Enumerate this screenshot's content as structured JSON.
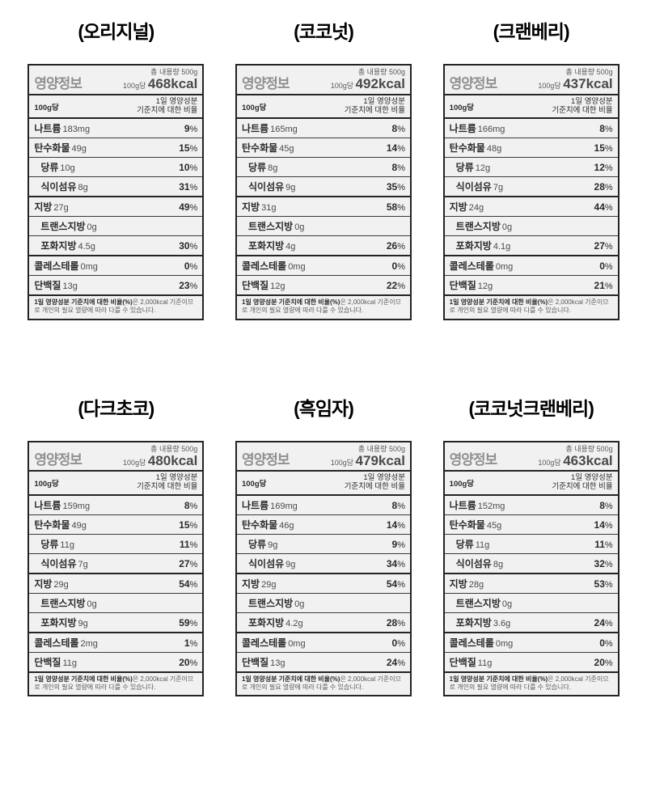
{
  "labels": {
    "nutrition_title": "영양정보",
    "total_net": "총 내용량 500g",
    "per100_prefix": "100g당",
    "per100g": "100g당",
    "daily_value_line1": "1일 영양성분",
    "daily_value_line2": "기준치에 대한 비율",
    "footnote_bold": "1일 영양성분 기준치에 대한 비율(%)",
    "footnote_rest": "은 2,000kcal 기준이므로 개인의 필요 열량에 따라 다를 수 있습니다."
  },
  "nutrients": {
    "sodium": "나트륨",
    "carbs": "탄수화물",
    "sugar": "당류",
    "fiber": "식이섬유",
    "fat": "지방",
    "trans": "트랜스지방",
    "sat": "포화지방",
    "chol": "콜레스테롤",
    "protein": "단백질"
  },
  "style": {
    "card_bg": "#f1f1f1",
    "border_color": "#242424",
    "title_gray": "#8f8f8f",
    "text_color": "#2a2a2a"
  },
  "variants": [
    {
      "title": "(오리지널)",
      "kcal": "468kcal",
      "rows": [
        {
          "k": "sodium",
          "amt": "183mg",
          "pct": "9",
          "thick": false,
          "indent": false
        },
        {
          "k": "carbs",
          "amt": "49g",
          "pct": "15",
          "thick": false,
          "indent": false
        },
        {
          "k": "sugar",
          "amt": "10g",
          "pct": "10",
          "thick": false,
          "indent": true
        },
        {
          "k": "fiber",
          "amt": "8g",
          "pct": "31",
          "thick": true,
          "indent": true
        },
        {
          "k": "fat",
          "amt": "27g",
          "pct": "49",
          "thick": false,
          "indent": false
        },
        {
          "k": "trans",
          "amt": "0g",
          "pct": "",
          "thick": false,
          "indent": true
        },
        {
          "k": "sat",
          "amt": "4.5g",
          "pct": "30",
          "thick": true,
          "indent": true
        },
        {
          "k": "chol",
          "amt": "0mg",
          "pct": "0",
          "thick": false,
          "indent": false
        },
        {
          "k": "protein",
          "amt": "13g",
          "pct": "23",
          "thick": true,
          "indent": false
        }
      ]
    },
    {
      "title": "(코코넛)",
      "kcal": "492kcal",
      "rows": [
        {
          "k": "sodium",
          "amt": "165mg",
          "pct": "8",
          "thick": false,
          "indent": false
        },
        {
          "k": "carbs",
          "amt": "45g",
          "pct": "14",
          "thick": false,
          "indent": false
        },
        {
          "k": "sugar",
          "amt": "8g",
          "pct": "8",
          "thick": false,
          "indent": true
        },
        {
          "k": "fiber",
          "amt": "9g",
          "pct": "35",
          "thick": true,
          "indent": true
        },
        {
          "k": "fat",
          "amt": "31g",
          "pct": "58",
          "thick": false,
          "indent": false
        },
        {
          "k": "trans",
          "amt": "0g",
          "pct": "",
          "thick": false,
          "indent": true
        },
        {
          "k": "sat",
          "amt": "4g",
          "pct": "26",
          "thick": true,
          "indent": true
        },
        {
          "k": "chol",
          "amt": "0mg",
          "pct": "0",
          "thick": false,
          "indent": false
        },
        {
          "k": "protein",
          "amt": "12g",
          "pct": "22",
          "thick": true,
          "indent": false
        }
      ]
    },
    {
      "title": "(크랜베리)",
      "kcal": "437kcal",
      "rows": [
        {
          "k": "sodium",
          "amt": "166mg",
          "pct": "8",
          "thick": false,
          "indent": false
        },
        {
          "k": "carbs",
          "amt": "48g",
          "pct": "15",
          "thick": false,
          "indent": false
        },
        {
          "k": "sugar",
          "amt": "12g",
          "pct": "12",
          "thick": false,
          "indent": true
        },
        {
          "k": "fiber",
          "amt": "7g",
          "pct": "28",
          "thick": true,
          "indent": true
        },
        {
          "k": "fat",
          "amt": "24g",
          "pct": "44",
          "thick": false,
          "indent": false
        },
        {
          "k": "trans",
          "amt": "0g",
          "pct": "",
          "thick": false,
          "indent": true
        },
        {
          "k": "sat",
          "amt": "4.1g",
          "pct": "27",
          "thick": true,
          "indent": true
        },
        {
          "k": "chol",
          "amt": "0mg",
          "pct": "0",
          "thick": false,
          "indent": false
        },
        {
          "k": "protein",
          "amt": "12g",
          "pct": "21",
          "thick": true,
          "indent": false
        }
      ]
    },
    {
      "title": "(다크초코)",
      "kcal": "480kcal",
      "rows": [
        {
          "k": "sodium",
          "amt": "159mg",
          "pct": "8",
          "thick": false,
          "indent": false
        },
        {
          "k": "carbs",
          "amt": "49g",
          "pct": "15",
          "thick": false,
          "indent": false
        },
        {
          "k": "sugar",
          "amt": "11g",
          "pct": "11",
          "thick": false,
          "indent": true
        },
        {
          "k": "fiber",
          "amt": "7g",
          "pct": "27",
          "thick": true,
          "indent": true
        },
        {
          "k": "fat",
          "amt": "29g",
          "pct": "54",
          "thick": false,
          "indent": false
        },
        {
          "k": "trans",
          "amt": "0g",
          "pct": "",
          "thick": false,
          "indent": true
        },
        {
          "k": "sat",
          "amt": "9g",
          "pct": "59",
          "thick": true,
          "indent": true
        },
        {
          "k": "chol",
          "amt": "2mg",
          "pct": "1",
          "thick": false,
          "indent": false
        },
        {
          "k": "protein",
          "amt": "11g",
          "pct": "20",
          "thick": true,
          "indent": false
        }
      ]
    },
    {
      "title": "(흑임자)",
      "kcal": "479kcal",
      "rows": [
        {
          "k": "sodium",
          "amt": "169mg",
          "pct": "8",
          "thick": false,
          "indent": false
        },
        {
          "k": "carbs",
          "amt": "46g",
          "pct": "14",
          "thick": false,
          "indent": false
        },
        {
          "k": "sugar",
          "amt": "9g",
          "pct": "9",
          "thick": false,
          "indent": true
        },
        {
          "k": "fiber",
          "amt": "9g",
          "pct": "34",
          "thick": true,
          "indent": true
        },
        {
          "k": "fat",
          "amt": "29g",
          "pct": "54",
          "thick": false,
          "indent": false
        },
        {
          "k": "trans",
          "amt": "0g",
          "pct": "",
          "thick": false,
          "indent": true
        },
        {
          "k": "sat",
          "amt": "4.2g",
          "pct": "28",
          "thick": true,
          "indent": true
        },
        {
          "k": "chol",
          "amt": "0mg",
          "pct": "0",
          "thick": false,
          "indent": false
        },
        {
          "k": "protein",
          "amt": "13g",
          "pct": "24",
          "thick": true,
          "indent": false
        }
      ]
    },
    {
      "title": "(코코넛크랜베리)",
      "kcal": "463kcal",
      "rows": [
        {
          "k": "sodium",
          "amt": "152mg",
          "pct": "8",
          "thick": false,
          "indent": false
        },
        {
          "k": "carbs",
          "amt": "45g",
          "pct": "14",
          "thick": false,
          "indent": false
        },
        {
          "k": "sugar",
          "amt": "11g",
          "pct": "11",
          "thick": false,
          "indent": true
        },
        {
          "k": "fiber",
          "amt": "8g",
          "pct": "32",
          "thick": true,
          "indent": true
        },
        {
          "k": "fat",
          "amt": "28g",
          "pct": "53",
          "thick": false,
          "indent": false
        },
        {
          "k": "trans",
          "amt": "0g",
          "pct": "",
          "thick": false,
          "indent": true
        },
        {
          "k": "sat",
          "amt": "3.6g",
          "pct": "24",
          "thick": true,
          "indent": true
        },
        {
          "k": "chol",
          "amt": "0mg",
          "pct": "0",
          "thick": false,
          "indent": false
        },
        {
          "k": "protein",
          "amt": "11g",
          "pct": "20",
          "thick": true,
          "indent": false
        }
      ]
    }
  ]
}
